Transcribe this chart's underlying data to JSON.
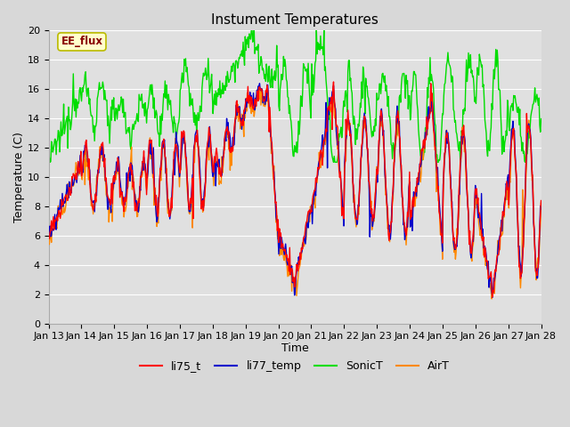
{
  "title": "Instument Temperatures",
  "xlabel": "Time",
  "ylabel": "Temperature (C)",
  "ylim": [
    0,
    20
  ],
  "tick_labels": [
    "Jan 13",
    "Jan 14",
    "Jan 15",
    "Jan 16",
    "Jan 17",
    "Jan 18",
    "Jan 19",
    "Jan 20",
    "Jan 21",
    "Jan 22",
    "Jan 23",
    "Jan 24",
    "Jan 25",
    "Jan 26",
    "Jan 27",
    "Jan 28"
  ],
  "annotation_text": "EE_flux",
  "annotation_bg": "#ffffcc",
  "annotation_border": "#bbbb00",
  "annotation_text_color": "#880000",
  "colors": {
    "li75_t": "#ff0000",
    "li77_temp": "#0000cc",
    "SonicT": "#00dd00",
    "AirT": "#ff8800"
  },
  "linewidth": 1.0,
  "bg_color": "#d8d8d8",
  "plot_bg": "#e0e0e0",
  "grid_color": "#ffffff",
  "figsize": [
    6.4,
    4.8
  ],
  "dpi": 100
}
